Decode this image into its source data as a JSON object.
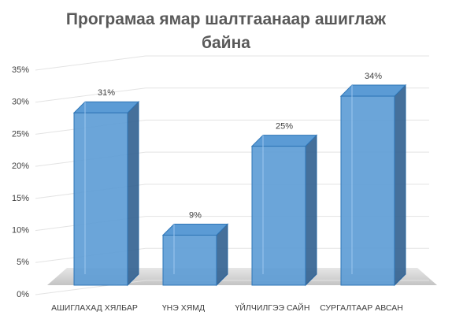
{
  "chart_data": {
    "type": "bar3d",
    "title": "Програмаа ямар шалтгаанаар ашиглаж байна",
    "categories": [
      "АШИГЛАХАД ХЯЛБАР",
      "ҮНЭ ХЯМД",
      "ҮЙЛЧИЛГЭЭ САЙН",
      "СУРГАЛТААР АВСАН"
    ],
    "values": [
      31,
      9,
      25,
      34
    ],
    "value_labels": [
      "31%",
      "9%",
      "25%",
      "34%"
    ],
    "color": "#5b9bd5",
    "ylim": [
      0,
      35
    ],
    "yticks": [
      {
        "value": 0,
        "label": "0%"
      },
      {
        "value": 5,
        "label": "5%"
      },
      {
        "value": 10,
        "label": "10%"
      },
      {
        "value": 15,
        "label": "15%"
      },
      {
        "value": 20,
        "label": "20%"
      },
      {
        "value": 25,
        "label": "25%"
      },
      {
        "value": 30,
        "label": "30%"
      },
      {
        "value": 35,
        "label": "35%"
      }
    ],
    "grid": true
  }
}
